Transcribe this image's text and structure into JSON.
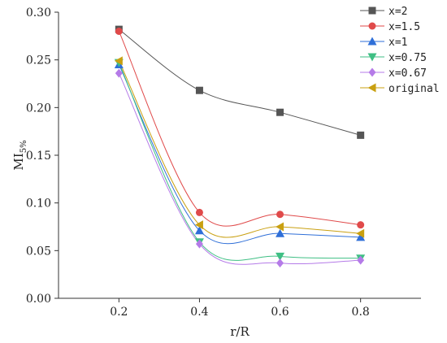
{
  "chart_data": {
    "type": "line",
    "title": "",
    "xlabel": "r/R",
    "ylabel": "MI",
    "ylabel_sub": "5%",
    "x": [
      0.2,
      0.4,
      0.6,
      0.8
    ],
    "xlim": [
      0.05,
      0.95
    ],
    "ylim": [
      0.0,
      0.3
    ],
    "xticks": [
      "0.2",
      "0.4",
      "0.6",
      "0.8"
    ],
    "yticks": [
      "0.00",
      "0.05",
      "0.10",
      "0.15",
      "0.20",
      "0.25",
      "0.30"
    ],
    "grid": false,
    "legend_position": "top-right",
    "series": [
      {
        "name": "x=2",
        "color": "#555555",
        "marker": "square",
        "values": [
          0.282,
          0.218,
          0.195,
          0.171
        ]
      },
      {
        "name": "x=1.5",
        "color": "#e04a4a",
        "marker": "circle",
        "values": [
          0.28,
          0.09,
          0.088,
          0.077
        ]
      },
      {
        "name": "x=1",
        "color": "#2f6fd8",
        "marker": "triangle-up",
        "values": [
          0.245,
          0.071,
          0.068,
          0.064
        ]
      },
      {
        "name": "x=0.75",
        "color": "#3fbf84",
        "marker": "triangle-down",
        "values": [
          0.247,
          0.059,
          0.044,
          0.042
        ]
      },
      {
        "name": "x=0.67",
        "color": "#b57be8",
        "marker": "diamond",
        "values": [
          0.236,
          0.057,
          0.037,
          0.04
        ]
      },
      {
        "name": "original",
        "color": "#c9a011",
        "marker": "triangle-left",
        "values": [
          0.249,
          0.077,
          0.075,
          0.068
        ]
      }
    ]
  }
}
